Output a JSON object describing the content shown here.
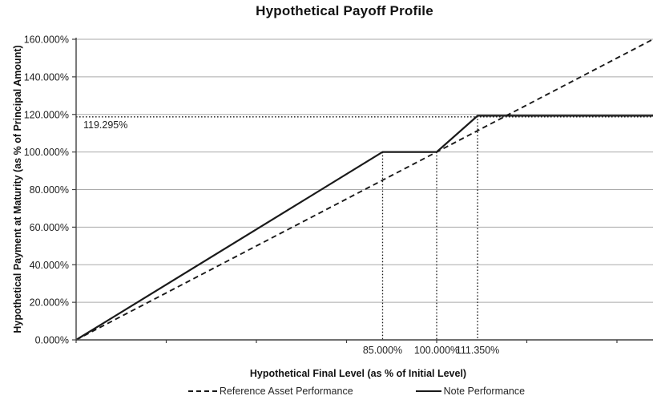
{
  "title": "Hypothetical Payoff Profile",
  "annotation_label": "119.295%",
  "colors": {
    "series_line": "#1a1a1a",
    "gridline": "#aaaaaa",
    "axis": "#404040",
    "text": "#1f1f1f",
    "background": "#ffffff"
  },
  "chart_data": {
    "type": "line",
    "title": "Hypothetical Payoff Profile",
    "xlabel": "Hypothetical Final Level (as % of Initial Level)",
    "ylabel": "Hypothetical Payment at Maturity (as % of Principal Amount)",
    "xlim": [
      0,
      160
    ],
    "ylim": [
      0,
      160
    ],
    "grid": "horizontal-only",
    "legend_position": "bottom",
    "y_ticks": [
      {
        "value": 0,
        "label": "0.000%"
      },
      {
        "value": 20,
        "label": "20.000%"
      },
      {
        "value": 40,
        "label": "40.000%"
      },
      {
        "value": 60,
        "label": "60.000%"
      },
      {
        "value": 80,
        "label": "80.000%"
      },
      {
        "value": 100,
        "label": "100.000%"
      },
      {
        "value": 120,
        "label": "120.000%"
      },
      {
        "value": 140,
        "label": "140.000%"
      },
      {
        "value": 160,
        "label": "160.000%"
      }
    ],
    "x_minor_tick_values": [
      0,
      25,
      50,
      75,
      100,
      125,
      150
    ],
    "x_value_labels": [
      {
        "value": 85,
        "label": "85.000%"
      },
      {
        "value": 100,
        "label": "100.000%"
      },
      {
        "value": 111.35,
        "label": "111.350%"
      }
    ],
    "series": [
      {
        "name": "Reference Asset Performance",
        "style": "dashed",
        "points": [
          [
            0,
            0
          ],
          [
            160,
            160
          ]
        ]
      },
      {
        "name": "Note Performance",
        "style": "solid",
        "points": [
          [
            0,
            0
          ],
          [
            85,
            100
          ],
          [
            100,
            100
          ],
          [
            111.35,
            119.295
          ],
          [
            160,
            119.295
          ]
        ]
      }
    ],
    "guides": {
      "horizontal_dotted": [
        {
          "y": 119.295,
          "x_start": 0,
          "x_end": 160
        }
      ],
      "vertical_dotted": [
        {
          "x": 85,
          "y_top": 100
        },
        {
          "x": 100,
          "y_top": 100
        },
        {
          "x": 111.35,
          "y_top": 119.295
        }
      ]
    },
    "annotation": {
      "text": "119.295%",
      "x": 2,
      "y": 119.295
    }
  }
}
